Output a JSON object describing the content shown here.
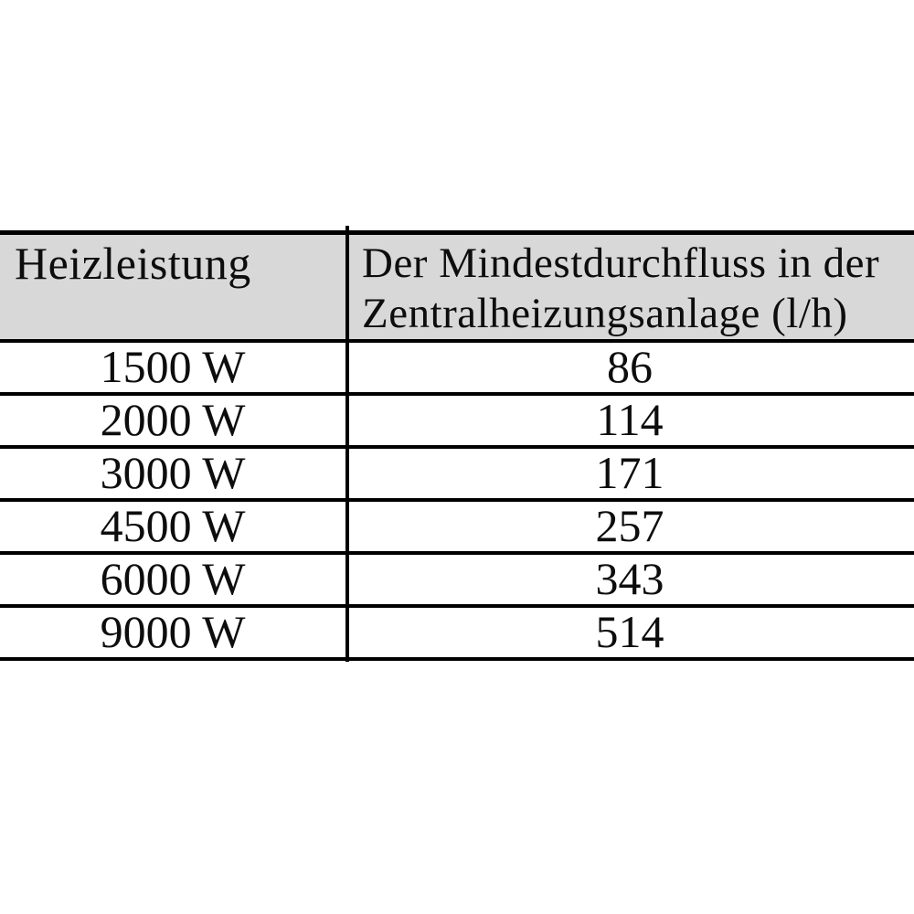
{
  "table": {
    "header": {
      "col1": "Heizleistung",
      "col2": "Der Mindestdurchfluss in der Zentralheizungsanlage (l/h)"
    },
    "rows": [
      {
        "power": "1500 W",
        "flow": "86"
      },
      {
        "power": "2000 W",
        "flow": "114"
      },
      {
        "power": "3000 W",
        "flow": "171"
      },
      {
        "power": "4500 W",
        "flow": "257"
      },
      {
        "power": "6000 W",
        "flow": "343"
      },
      {
        "power": "9000 W",
        "flow": "514"
      }
    ],
    "colors": {
      "header_background": "#d8d8d8",
      "border": "#000000",
      "text": "#0d0d0d",
      "page_background": "#ffffff"
    }
  }
}
